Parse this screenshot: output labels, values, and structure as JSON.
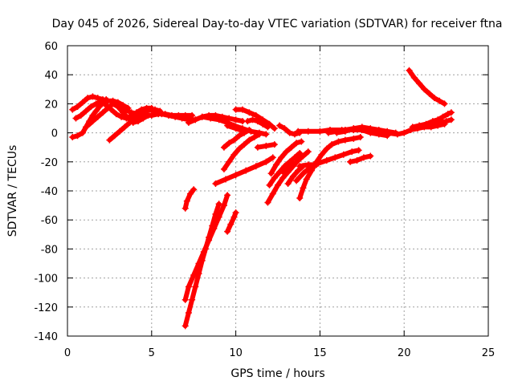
{
  "chart_data": {
    "type": "scatter",
    "title": "Day 045 of 2026, Sidereal Day-to-day VTEC variation (SDTVAR) for receiver ftna",
    "xlabel": "GPS time / hours",
    "ylabel": "SDTVAR / TECUs",
    "xlim": [
      0,
      25
    ],
    "ylim": [
      -140,
      60
    ],
    "xticks": [
      0,
      5,
      10,
      15,
      20,
      25
    ],
    "yticks": [
      -140,
      -120,
      -100,
      -80,
      -60,
      -40,
      -20,
      0,
      20,
      40,
      60
    ],
    "grid": true,
    "legend": "none",
    "marker": "plus",
    "color": "#ff0000",
    "series": [
      {
        "points": [
          [
            0.3,
            16
          ],
          [
            0.6,
            18
          ],
          [
            0.9,
            21
          ],
          [
            1.2,
            24
          ],
          [
            1.5,
            25
          ],
          [
            1.8,
            24
          ],
          [
            2.1,
            23
          ],
          [
            2.4,
            22
          ],
          [
            2.7,
            22
          ],
          [
            3.0,
            21
          ],
          [
            3.3,
            19
          ],
          [
            3.6,
            17
          ]
        ]
      },
      {
        "points": [
          [
            0.3,
            -3
          ],
          [
            0.6,
            -2
          ],
          [
            0.9,
            0
          ],
          [
            1.1,
            4
          ],
          [
            1.3,
            8
          ],
          [
            1.5,
            12
          ],
          [
            1.7,
            15
          ],
          [
            1.9,
            18
          ],
          [
            2.1,
            21
          ],
          [
            2.3,
            23
          ]
        ]
      },
      {
        "points": [
          [
            0.5,
            10
          ],
          [
            0.8,
            12
          ],
          [
            1.1,
            15
          ],
          [
            1.4,
            18
          ],
          [
            1.7,
            20
          ],
          [
            2.0,
            21
          ],
          [
            2.3,
            19
          ],
          [
            2.6,
            16
          ],
          [
            2.9,
            13
          ],
          [
            3.2,
            11
          ],
          [
            3.5,
            10
          ],
          [
            3.8,
            12
          ],
          [
            4.1,
            14
          ],
          [
            4.4,
            16
          ],
          [
            4.7,
            17
          ],
          [
            5.0,
            17
          ]
        ]
      },
      {
        "points": [
          [
            1.2,
            5
          ],
          [
            1.5,
            8
          ],
          [
            1.8,
            11
          ],
          [
            2.1,
            14
          ],
          [
            2.4,
            17
          ],
          [
            2.7,
            20
          ],
          [
            3.0,
            18
          ],
          [
            3.3,
            14
          ],
          [
            3.6,
            10
          ],
          [
            3.9,
            7
          ],
          [
            4.2,
            8
          ],
          [
            4.5,
            10
          ],
          [
            4.8,
            12
          ]
        ]
      },
      {
        "points": [
          [
            2.5,
            -5
          ],
          [
            2.8,
            -2
          ],
          [
            3.1,
            1
          ],
          [
            3.4,
            4
          ],
          [
            3.7,
            7
          ],
          [
            4.0,
            10
          ],
          [
            4.3,
            12
          ],
          [
            4.6,
            14
          ],
          [
            4.9,
            16
          ],
          [
            5.2,
            16
          ],
          [
            5.5,
            15
          ]
        ]
      },
      {
        "points": [
          [
            3.0,
            18
          ],
          [
            3.4,
            16
          ],
          [
            3.8,
            14
          ],
          [
            4.2,
            13
          ],
          [
            4.6,
            12
          ],
          [
            5.0,
            12
          ],
          [
            5.4,
            13
          ],
          [
            5.8,
            13
          ],
          [
            6.2,
            12
          ],
          [
            6.6,
            12
          ],
          [
            7.0,
            12
          ],
          [
            7.4,
            12
          ]
        ]
      },
      {
        "points": [
          [
            4.8,
            16
          ],
          [
            5.2,
            15
          ],
          [
            5.6,
            13
          ],
          [
            6.0,
            12
          ],
          [
            6.4,
            11
          ],
          [
            6.8,
            10
          ],
          [
            7.2,
            9
          ],
          [
            7.6,
            9
          ]
        ]
      },
      {
        "points": [
          [
            7.2,
            7
          ],
          [
            7.6,
            9
          ],
          [
            8.0,
            11
          ],
          [
            8.4,
            12
          ],
          [
            8.8,
            12
          ],
          [
            9.2,
            11
          ],
          [
            9.6,
            10
          ],
          [
            10.0,
            9
          ],
          [
            10.4,
            8
          ]
        ]
      },
      {
        "points": [
          [
            8.0,
            11
          ],
          [
            8.5,
            10
          ],
          [
            9.0,
            9
          ],
          [
            9.5,
            7
          ],
          [
            9.9,
            5
          ],
          [
            10.4,
            3
          ],
          [
            10.9,
            1
          ],
          [
            11.4,
            0
          ],
          [
            11.8,
            -1
          ]
        ]
      },
      {
        "points": [
          [
            10.0,
            16
          ],
          [
            10.4,
            16
          ],
          [
            10.8,
            14
          ],
          [
            11.2,
            12
          ],
          [
            11.6,
            9
          ],
          [
            12.0,
            6
          ],
          [
            12.3,
            3
          ]
        ]
      },
      {
        "points": [
          [
            10.7,
            8
          ],
          [
            11.0,
            9
          ],
          [
            11.3,
            8
          ],
          [
            11.6,
            6
          ],
          [
            11.9,
            4
          ]
        ]
      },
      {
        "points": [
          [
            9.5,
            5
          ],
          [
            10.0,
            3
          ],
          [
            10.5,
            1
          ]
        ]
      },
      {
        "points": [
          [
            12.6,
            5
          ],
          [
            12.9,
            3
          ],
          [
            13.2,
            0
          ],
          [
            13.5,
            -1
          ],
          [
            13.8,
            0
          ]
        ]
      },
      {
        "points": [
          [
            13.7,
            1
          ],
          [
            14.3,
            1
          ],
          [
            15.0,
            1
          ],
          [
            15.6,
            2
          ],
          [
            16.3,
            2
          ],
          [
            17.0,
            2
          ],
          [
            17.6,
            2
          ],
          [
            18.3,
            1
          ],
          [
            19.0,
            0
          ],
          [
            19.6,
            -1
          ],
          [
            20.0,
            0
          ],
          [
            20.4,
            2
          ],
          [
            20.8,
            3
          ],
          [
            21.2,
            4
          ],
          [
            21.6,
            4
          ],
          [
            22.0,
            5
          ],
          [
            22.4,
            6
          ]
        ]
      },
      {
        "points": [
          [
            15.5,
            0
          ],
          [
            16.0,
            1
          ],
          [
            16.5,
            2
          ],
          [
            17.0,
            3
          ],
          [
            17.5,
            2
          ],
          [
            18.0,
            0
          ],
          [
            18.5,
            -1
          ],
          [
            19.0,
            -2
          ]
        ]
      },
      {
        "points": [
          [
            16.0,
            0
          ],
          [
            16.5,
            1
          ],
          [
            17.0,
            3
          ],
          [
            17.5,
            4
          ],
          [
            18.0,
            3
          ],
          [
            18.5,
            2
          ],
          [
            19.0,
            1
          ],
          [
            19.5,
            0
          ]
        ]
      },
      {
        "points": [
          [
            20.3,
            43
          ],
          [
            20.6,
            38
          ],
          [
            20.9,
            34
          ],
          [
            21.2,
            30
          ],
          [
            21.5,
            27
          ],
          [
            21.8,
            24
          ],
          [
            22.1,
            22
          ],
          [
            22.4,
            20
          ]
        ]
      },
      {
        "points": [
          [
            20.5,
            4
          ],
          [
            20.9,
            5
          ],
          [
            21.3,
            6
          ],
          [
            21.7,
            8
          ],
          [
            22.0,
            9
          ],
          [
            22.3,
            11
          ],
          [
            22.6,
            13
          ],
          [
            22.8,
            14
          ]
        ]
      },
      {
        "points": [
          [
            21.5,
            5
          ],
          [
            21.9,
            6
          ],
          [
            22.2,
            7
          ],
          [
            22.5,
            8
          ],
          [
            22.8,
            9
          ]
        ]
      },
      {
        "points": [
          [
            9.3,
            -10
          ],
          [
            9.6,
            -7
          ],
          [
            9.9,
            -5
          ],
          [
            10.2,
            -2
          ],
          [
            10.5,
            0
          ],
          [
            10.8,
            2
          ]
        ]
      },
      {
        "points": [
          [
            9.3,
            -25
          ],
          [
            9.6,
            -20
          ],
          [
            9.9,
            -15
          ],
          [
            10.2,
            -11
          ],
          [
            10.5,
            -8
          ],
          [
            10.8,
            -5
          ],
          [
            11.1,
            -3
          ],
          [
            11.4,
            -1
          ]
        ]
      },
      {
        "points": [
          [
            8.8,
            -35
          ],
          [
            9.4,
            -32
          ],
          [
            10.0,
            -29
          ],
          [
            10.6,
            -26
          ],
          [
            11.2,
            -23
          ],
          [
            11.8,
            -20
          ],
          [
            12.2,
            -17
          ]
        ]
      },
      {
        "points": [
          [
            7.0,
            -52
          ],
          [
            7.1,
            -47
          ],
          [
            7.3,
            -42
          ],
          [
            7.5,
            -39
          ]
        ]
      },
      {
        "points": [
          [
            7.0,
            -115
          ],
          [
            7.2,
            -106
          ],
          [
            7.5,
            -98
          ],
          [
            7.8,
            -90
          ],
          [
            8.1,
            -82
          ],
          [
            8.4,
            -74
          ],
          [
            8.7,
            -66
          ],
          [
            9.0,
            -58
          ],
          [
            9.3,
            -50
          ],
          [
            9.5,
            -43
          ]
        ]
      },
      {
        "points": [
          [
            7.0,
            -133
          ],
          [
            7.2,
            -124
          ],
          [
            7.4,
            -115
          ],
          [
            7.6,
            -106
          ],
          [
            7.8,
            -97
          ],
          [
            8.0,
            -88
          ],
          [
            8.2,
            -80
          ],
          [
            8.4,
            -72
          ],
          [
            8.6,
            -64
          ],
          [
            8.8,
            -56
          ],
          [
            9.0,
            -49
          ]
        ]
      },
      {
        "points": [
          [
            9.5,
            -68
          ],
          [
            9.7,
            -63
          ],
          [
            9.9,
            -58
          ],
          [
            10.0,
            -55
          ]
        ]
      },
      {
        "points": [
          [
            11.3,
            -10
          ],
          [
            11.8,
            -9
          ],
          [
            12.3,
            -8
          ]
        ]
      },
      {
        "points": [
          [
            11.9,
            -48
          ],
          [
            12.2,
            -42
          ],
          [
            12.5,
            -36
          ],
          [
            12.8,
            -31
          ],
          [
            13.1,
            -27
          ],
          [
            13.4,
            -23
          ],
          [
            13.7,
            -19
          ],
          [
            14.0,
            -16
          ],
          [
            14.3,
            -13
          ]
        ]
      },
      {
        "points": [
          [
            12.0,
            -36
          ],
          [
            12.3,
            -31
          ],
          [
            12.6,
            -27
          ],
          [
            12.9,
            -23
          ],
          [
            13.2,
            -20
          ],
          [
            13.5,
            -17
          ],
          [
            13.8,
            -14
          ]
        ]
      },
      {
        "points": [
          [
            12.1,
            -28
          ],
          [
            12.4,
            -22
          ],
          [
            12.7,
            -17
          ],
          [
            13.0,
            -13
          ],
          [
            13.3,
            -10
          ],
          [
            13.6,
            -7
          ],
          [
            13.9,
            -6
          ]
        ]
      },
      {
        "points": [
          [
            12.8,
            -27
          ],
          [
            13.1,
            -24
          ],
          [
            13.4,
            -21
          ]
        ]
      },
      {
        "points": [
          [
            13.1,
            -35
          ],
          [
            13.4,
            -30
          ],
          [
            13.7,
            -26
          ],
          [
            14.0,
            -23
          ]
        ]
      },
      {
        "points": [
          [
            13.8,
            -45
          ],
          [
            14.0,
            -38
          ],
          [
            14.2,
            -32
          ],
          [
            14.5,
            -26
          ],
          [
            14.8,
            -20
          ],
          [
            15.1,
            -15
          ],
          [
            15.4,
            -11
          ],
          [
            15.7,
            -8
          ],
          [
            16.1,
            -6
          ],
          [
            16.5,
            -5
          ],
          [
            17.0,
            -4
          ],
          [
            17.4,
            -3
          ]
        ]
      },
      {
        "points": [
          [
            13.6,
            -33
          ],
          [
            14.0,
            -28
          ],
          [
            14.4,
            -24
          ],
          [
            14.9,
            -21
          ],
          [
            15.4,
            -19
          ],
          [
            15.9,
            -17
          ],
          [
            16.4,
            -15
          ],
          [
            16.9,
            -13
          ],
          [
            17.3,
            -12
          ]
        ]
      },
      {
        "points": [
          [
            13.8,
            -23
          ],
          [
            14.3,
            -22
          ],
          [
            14.8,
            -22
          ]
        ]
      },
      {
        "points": [
          [
            16.8,
            -20
          ],
          [
            17.2,
            -19
          ],
          [
            17.6,
            -17
          ],
          [
            18.0,
            -16
          ]
        ]
      }
    ]
  }
}
